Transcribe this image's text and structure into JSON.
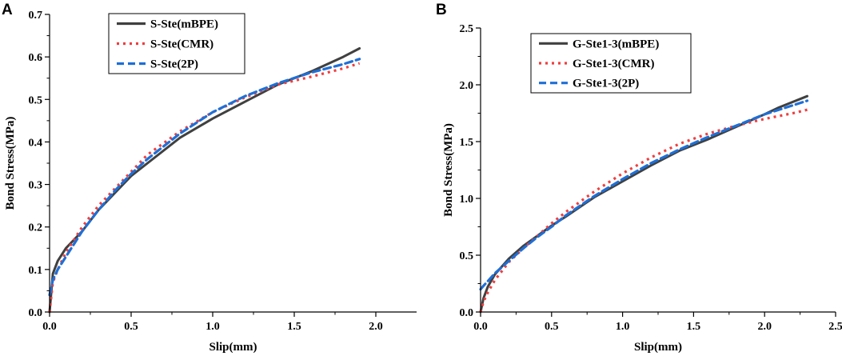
{
  "chart_data": [
    {
      "panel": "A",
      "type": "line",
      "title": "",
      "xlabel": "Slip(mm)",
      "ylabel": "Bond Stress(MPa)",
      "xlim": [
        0,
        2.25
      ],
      "ylim": [
        0,
        0.7
      ],
      "xticks": [
        "0.0",
        "0.5",
        "1.0",
        "1.5",
        "2.0"
      ],
      "xtick_values": [
        0,
        0.5,
        1.0,
        1.5,
        2.0
      ],
      "yticks": [
        "0.0",
        "0.1",
        "0.2",
        "0.3",
        "0.4",
        "0.5",
        "0.6",
        "0.7"
      ],
      "ytick_values": [
        0,
        0.1,
        0.2,
        0.3,
        0.4,
        0.5,
        0.6,
        0.7
      ],
      "legend_position": "top-left",
      "series": [
        {
          "name": "S-Ste(mBPE)",
          "color": "#404040",
          "style": "solid",
          "x": [
            0,
            0.02,
            0.05,
            0.1,
            0.2,
            0.3,
            0.4,
            0.5,
            0.6,
            0.8,
            1.0,
            1.2,
            1.4,
            1.6,
            1.8,
            1.9
          ],
          "y": [
            0,
            0.09,
            0.12,
            0.15,
            0.19,
            0.24,
            0.28,
            0.32,
            0.35,
            0.41,
            0.455,
            0.495,
            0.535,
            0.565,
            0.6,
            0.62
          ]
        },
        {
          "name": "S-Ste(CMR)",
          "color": "#ef3e3e",
          "style": "dotted",
          "x": [
            0,
            0.02,
            0.05,
            0.1,
            0.2,
            0.3,
            0.4,
            0.5,
            0.6,
            0.8,
            1.0,
            1.2,
            1.4,
            1.6,
            1.8,
            1.9
          ],
          "y": [
            0,
            0.07,
            0.1,
            0.14,
            0.2,
            0.25,
            0.29,
            0.33,
            0.37,
            0.425,
            0.47,
            0.505,
            0.535,
            0.553,
            0.573,
            0.585
          ]
        },
        {
          "name": "S-Ste(2P)",
          "color": "#1f6fd6",
          "style": "dashed",
          "x": [
            0,
            0.02,
            0.05,
            0.1,
            0.2,
            0.3,
            0.4,
            0.5,
            0.6,
            0.8,
            1.0,
            1.2,
            1.4,
            1.6,
            1.8,
            1.9
          ],
          "y": [
            0.04,
            0.075,
            0.1,
            0.13,
            0.19,
            0.24,
            0.285,
            0.325,
            0.36,
            0.42,
            0.47,
            0.508,
            0.538,
            0.563,
            0.583,
            0.595
          ]
        }
      ]
    },
    {
      "panel": "B",
      "type": "line",
      "title": "",
      "xlabel": "Slip(mm)",
      "ylabel": "Bond Stress(MPa)",
      "xlim": [
        0,
        2.5
      ],
      "ylim": [
        0,
        2.5
      ],
      "xticks": [
        "0.0",
        "0.5",
        "1.0",
        "1.5",
        "2.0",
        "2.5"
      ],
      "xtick_values": [
        0,
        0.5,
        1.0,
        1.5,
        2.0,
        2.5
      ],
      "yticks": [
        "0.0",
        "0.5",
        "1.0",
        "1.5",
        "2.0",
        "2.5"
      ],
      "ytick_values": [
        0,
        0.5,
        1.0,
        1.5,
        2.0,
        2.5
      ],
      "legend_position": "top-left",
      "series": [
        {
          "name": "G-Ste1-3(mBPE)",
          "color": "#404040",
          "style": "solid",
          "x": [
            0,
            0.02,
            0.05,
            0.1,
            0.2,
            0.3,
            0.4,
            0.5,
            0.6,
            0.8,
            1.0,
            1.2,
            1.4,
            1.6,
            1.8,
            2.0,
            2.1,
            2.3
          ],
          "y": [
            0,
            0.12,
            0.22,
            0.33,
            0.47,
            0.58,
            0.67,
            0.76,
            0.84,
            1.01,
            1.15,
            1.29,
            1.42,
            1.52,
            1.63,
            1.74,
            1.8,
            1.9
          ]
        },
        {
          "name": "G-Ste1-3(CMR)",
          "color": "#ef3e3e",
          "style": "dotted",
          "x": [
            0,
            0.02,
            0.05,
            0.1,
            0.2,
            0.3,
            0.4,
            0.5,
            0.6,
            0.8,
            1.0,
            1.2,
            1.4,
            1.6,
            1.8,
            2.0,
            2.2,
            2.3
          ],
          "y": [
            0,
            0.09,
            0.17,
            0.28,
            0.44,
            0.56,
            0.67,
            0.78,
            0.88,
            1.06,
            1.22,
            1.36,
            1.48,
            1.57,
            1.64,
            1.7,
            1.75,
            1.78
          ]
        },
        {
          "name": "G-Ste1-3(2P)",
          "color": "#1f6fd6",
          "style": "dashed",
          "x": [
            0,
            0.02,
            0.05,
            0.1,
            0.2,
            0.3,
            0.4,
            0.5,
            0.6,
            0.8,
            1.0,
            1.2,
            1.4,
            1.6,
            1.8,
            2.0,
            2.2,
            2.3
          ],
          "y": [
            0.2,
            0.23,
            0.27,
            0.34,
            0.45,
            0.56,
            0.66,
            0.75,
            0.85,
            1.02,
            1.17,
            1.31,
            1.43,
            1.54,
            1.64,
            1.74,
            1.82,
            1.86
          ]
        }
      ]
    }
  ]
}
